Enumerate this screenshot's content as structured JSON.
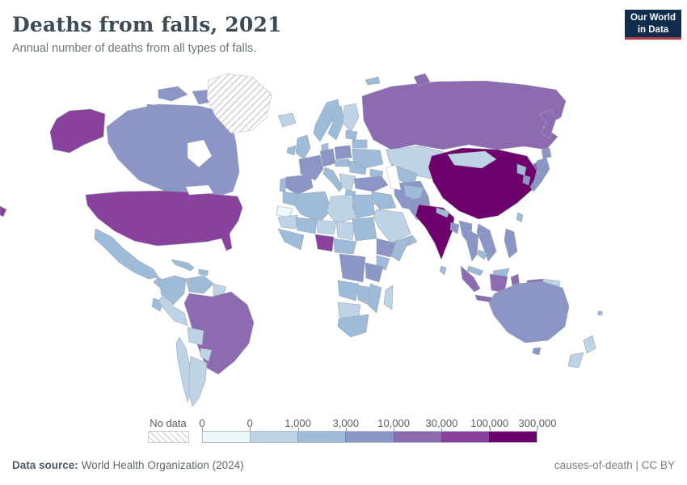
{
  "header": {
    "title": "Deaths from falls, 2021",
    "subtitle": "Annual number of deaths from all types of falls.",
    "logo_line1": "Our World",
    "logo_line2": "in Data"
  },
  "brand": {
    "logo_bg": "#102d4e",
    "logo_underline": "#b6404a"
  },
  "legend": {
    "no_data_label": "No data",
    "tick_labels": [
      "0",
      "0",
      "1,000",
      "3,000",
      "10,000",
      "30,000",
      "100,000",
      "300,000"
    ],
    "bucket_colors": [
      "#edf8fb",
      "#bfd3e6",
      "#9ebcda",
      "#8c96c6",
      "#8c6bb1",
      "#88419d",
      "#6e016b"
    ]
  },
  "footer": {
    "source_label": "Data source:",
    "source_value": "World Health Organization (2024)",
    "rights": "causes-of-death | CC BY"
  },
  "chart_data": {
    "type": "choropleth",
    "title": "Deaths from falls, 2021",
    "subtitle": "Annual number of deaths from all types of falls.",
    "year": "2021",
    "legend_boundary_labels": [
      "0",
      "0",
      "1,000",
      "3,000",
      "10,000",
      "30,000",
      "100,000",
      "300,000"
    ],
    "bins": [
      {
        "min": "0",
        "max": "0",
        "color": "#edf8fb"
      },
      {
        "min": "0",
        "max": "1,000",
        "color": "#bfd3e6"
      },
      {
        "min": "1,000",
        "max": "3,000",
        "color": "#9ebcda"
      },
      {
        "min": "3,000",
        "max": "10,000",
        "color": "#8c96c6"
      },
      {
        "min": "10,000",
        "max": "30,000",
        "color": "#8c6bb1"
      },
      {
        "min": "30,000",
        "max": "100,000",
        "color": "#88419d"
      },
      {
        "min": "100,000",
        "max": "300,000",
        "color": "#6e016b"
      }
    ],
    "no_data": {
      "label": "No data",
      "style": "diagonal-hatch",
      "countries": [
        "greenland"
      ]
    },
    "country_bins": {
      "usa": 5,
      "canada": 3,
      "iceland": 1,
      "mexico": 2,
      "central-america": 2,
      "cuba": 2,
      "hispaniola": 2,
      "colombia": 2,
      "venezuela": 2,
      "guyanas": 1,
      "brazil": 4,
      "ecuador": 2,
      "peru": 1,
      "bolivia": 1,
      "paraguay": 1,
      "chile": 1,
      "argentina": 1,
      "uk": 2,
      "ireland": 2,
      "norway": 2,
      "sweden": 2,
      "finland": 1,
      "denmark": 2,
      "germany": 3,
      "france": 3,
      "spain": 3,
      "portugal": 2,
      "italy": 2,
      "poland": 3,
      "czech-slovakia": 2,
      "hungary-romania": 2,
      "balkans": 1,
      "greece": 2,
      "ukraine": 2,
      "belarus": 2,
      "baltics": 2,
      "russia": 4,
      "svalbard": 2,
      "kazakhstan": 1,
      "central-asia": 2,
      "caucasus": 2,
      "turkey": 3,
      "syria-iraq": 2,
      "israel-jordan": 1,
      "iran": 3,
      "saudi-arabia": 1,
      "yemen-oman": 2,
      "morocco": 2,
      "western-sahara": 0,
      "algeria": 2,
      "libya": 1,
      "egypt": 2,
      "mauritania": 1,
      "mali": 2,
      "niger": 1,
      "chad": 1,
      "sudan": 2,
      "west-africa": 2,
      "nigeria": 5,
      "cameroon-car": 2,
      "ethiopia": 3,
      "somalia": 2,
      "kenya": 2,
      "drc": 3,
      "tanzania": 3,
      "angola": 2,
      "zambia-zimbabwe": 2,
      "mozambique": 2,
      "namibia-botswana": 1,
      "south-africa": 2,
      "madagascar": 1,
      "afghanistan": 2,
      "pakistan": 3,
      "china": 6,
      "mongolia": 1,
      "india": 6,
      "nepal": 2,
      "bangladesh": 3,
      "sri-lanka": 2,
      "myanmar": 3,
      "thailand": 3,
      "vietnam-laos": 3,
      "cambodia": 2,
      "malaysia": 2,
      "east-malaysia": 2,
      "indonesia": 4,
      "papua-new-guinea": 1,
      "philippines": 3,
      "taiwan": 2,
      "north-korea": 2,
      "south-korea": 3,
      "japan": 3,
      "australia": 3,
      "new-zealand": 1,
      "fiji": 2
    }
  }
}
